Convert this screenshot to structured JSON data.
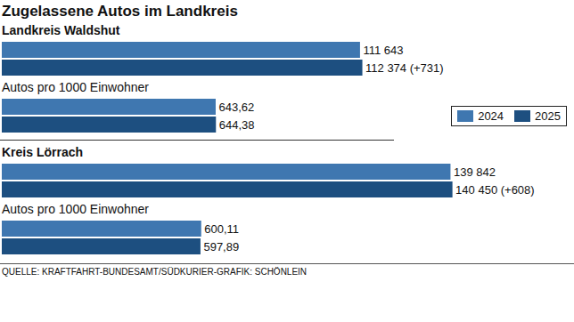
{
  "title": "Zugelassene Autos im Landkreis",
  "caption": "QUELLE: KRAFTFAHRT-BUNDESAMT/SÜDKURIER-GRAFIK: SCHÖNLEIN",
  "chart_data": [
    {
      "type": "bar",
      "title": "Landkreis Waldshut",
      "orientation": "horizontal",
      "categories": [
        "2024",
        "2025"
      ],
      "values": [
        111643,
        112374
      ],
      "value_labels": [
        "111 643",
        "112 374"
      ],
      "annotation": "(+731)",
      "colors": [
        "#3f77b0",
        "#1d4f80"
      ],
      "xlim": [
        0,
        145000
      ],
      "data_labels": true,
      "tick_labels": false
    },
    {
      "type": "bar",
      "title": "Autos pro 1000 Einwohner",
      "orientation": "horizontal",
      "categories": [
        "2024",
        "2025"
      ],
      "values": [
        643.62,
        644.38
      ],
      "value_labels": [
        "643,62",
        "644,38"
      ],
      "colors": [
        "#3f77b0",
        "#1d4f80"
      ],
      "xlim": [
        0,
        1400
      ],
      "data_labels": true,
      "tick_labels": false,
      "legend": "right"
    },
    {
      "type": "bar",
      "title": "Kreis Lörrach",
      "orientation": "horizontal",
      "categories": [
        "2024",
        "2025"
      ],
      "values": [
        139842,
        140450
      ],
      "value_labels": [
        "139 842",
        "140 450"
      ],
      "annotation": "(+608)",
      "colors": [
        "#3f77b0",
        "#1d4f80"
      ],
      "xlim": [
        0,
        145000
      ],
      "data_labels": true,
      "tick_labels": false
    },
    {
      "type": "bar",
      "title": "Autos pro 1000 Einwohner",
      "orientation": "horizontal",
      "categories": [
        "2024",
        "2025"
      ],
      "values": [
        600.11,
        597.89
      ],
      "value_labels": [
        "600,11",
        "597,89"
      ],
      "colors": [
        "#3f77b0",
        "#1d4f80"
      ],
      "xlim": [
        0,
        1400
      ],
      "data_labels": true,
      "tick_labels": false
    }
  ]
}
